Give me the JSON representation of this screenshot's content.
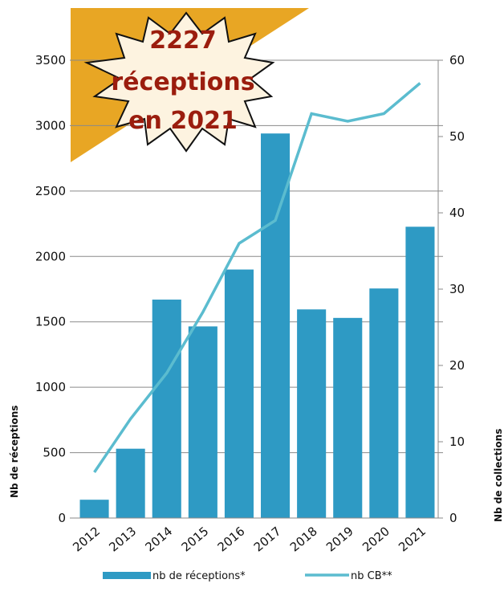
{
  "chart_data": {
    "type": "bar-line",
    "annotation": [
      "2227",
      "réceptions",
      "en 2021"
    ],
    "y_label": "Nb de réceptions",
    "y2_label": "Nb de collections",
    "categories": [
      "2012",
      "2013",
      "2014",
      "2015",
      "2016",
      "2017",
      "2018",
      "2019",
      "2020",
      "2021"
    ],
    "series": [
      {
        "name": "nb de réceptions*",
        "color": "#2e9ac4",
        "type": "bar",
        "values": [
          140,
          530,
          1670,
          1465,
          1900,
          2940,
          1595,
          1530,
          1755,
          2227
        ]
      },
      {
        "name": "nb CB**",
        "color": "#5bbccf",
        "type": "line",
        "axis": "y2",
        "values": [
          6,
          13,
          19,
          27,
          36,
          39,
          53,
          52,
          53,
          57
        ]
      }
    ],
    "ylim": [
      0,
      3500
    ],
    "yticks": [
      0,
      500,
      1000,
      1500,
      2000,
      2500,
      3000,
      3500
    ],
    "y2lim": [
      0,
      60
    ],
    "y2ticks": [
      0,
      10,
      20,
      30,
      40,
      50,
      60
    ],
    "grid": true,
    "legend": "bottom"
  }
}
